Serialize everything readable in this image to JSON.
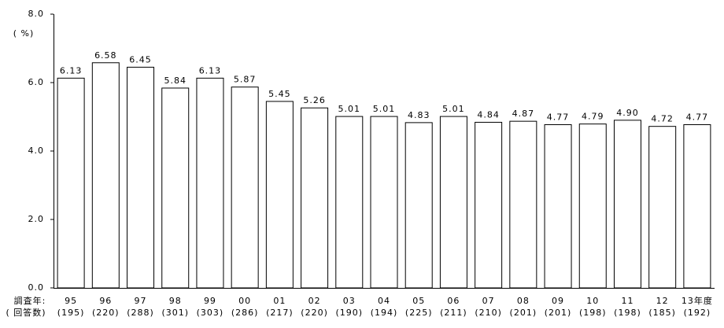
{
  "chart_data": {
    "type": "bar",
    "y_unit_label": "( %)",
    "row_labels": [
      "調査年:",
      "( 回答数)"
    ],
    "categories": [
      "95",
      "96",
      "97",
      "98",
      "99",
      "00",
      "01",
      "02",
      "03",
      "04",
      "05",
      "06",
      "07",
      "08",
      "09",
      "10",
      "11",
      "12",
      "13年度"
    ],
    "respondents": [
      "(195)",
      "(220)",
      "(288)",
      "(301)",
      "(303)",
      "(286)",
      "(217)",
      "(220)",
      "(190)",
      "(194)",
      "(225)",
      "(211)",
      "(210)",
      "(201)",
      "(201)",
      "(198)",
      "(198)",
      "(185)",
      "(192)"
    ],
    "values": [
      6.13,
      6.58,
      6.45,
      5.84,
      6.13,
      5.87,
      5.45,
      5.26,
      5.01,
      5.01,
      4.83,
      5.01,
      4.84,
      4.87,
      4.77,
      4.79,
      4.9,
      4.72,
      4.77
    ],
    "value_labels": [
      "6.13",
      "6.58",
      "6.45",
      "5.84",
      "6.13",
      "5.87",
      "5.45",
      "5.26",
      "5.01",
      "5.01",
      "4.83",
      "5.01",
      "4.84",
      "4.87",
      "4.77",
      "4.79",
      "4.90",
      "4.72",
      "4.77"
    ],
    "color": "#ffffff",
    "ylim": [
      0,
      8
    ],
    "yticks": [
      {
        "value": 0,
        "label": "0.0"
      },
      {
        "value": 2,
        "label": "2.0"
      },
      {
        "value": 4,
        "label": "4.0"
      },
      {
        "value": 6,
        "label": "6.0"
      },
      {
        "value": 8,
        "label": "8.0"
      }
    ],
    "grid": false
  }
}
